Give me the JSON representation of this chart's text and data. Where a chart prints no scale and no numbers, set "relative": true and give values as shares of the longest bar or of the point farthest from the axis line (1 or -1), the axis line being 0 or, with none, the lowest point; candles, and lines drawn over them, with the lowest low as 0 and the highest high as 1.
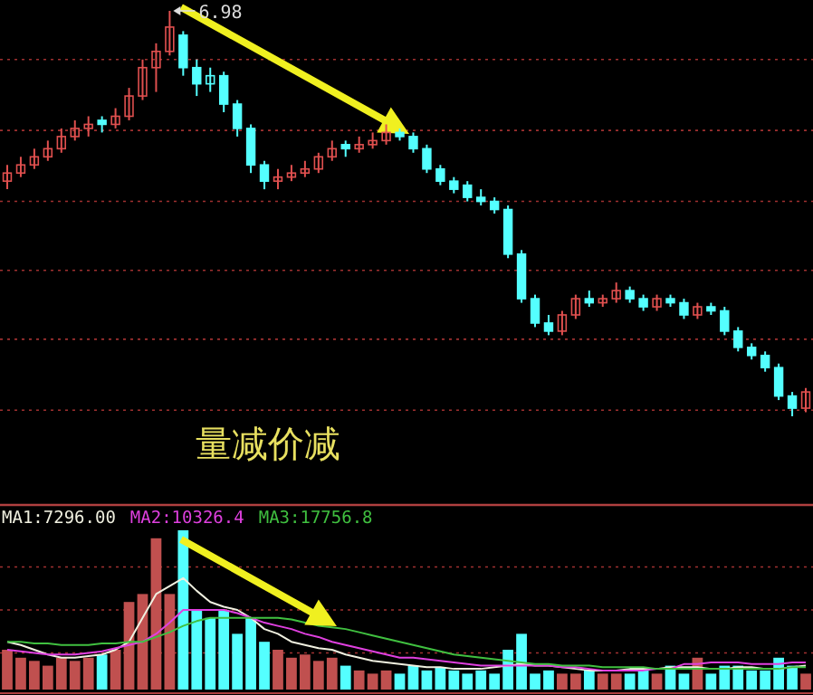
{
  "chart_data": [
    {
      "type": "candlestick",
      "relative": true,
      "ref_lines": [
        {
          "axis": "y",
          "value": 0.88,
          "color": "#a03030",
          "line_style": "dotted"
        },
        {
          "axis": "y",
          "value": 0.705,
          "color": "#a03030",
          "line_style": "dotted"
        },
        {
          "axis": "y",
          "value": 0.53,
          "color": "#a03030",
          "line_style": "dotted"
        },
        {
          "axis": "y",
          "value": 0.36,
          "color": "#a03030",
          "line_style": "dotted"
        },
        {
          "axis": "y",
          "value": 0.19,
          "color": "#a03030",
          "line_style": "dotted"
        },
        {
          "axis": "y",
          "value": 0.015,
          "color": "#a03030",
          "line_style": "dotted"
        }
      ],
      "annotations": [
        "6.98",
        "量减价减"
      ],
      "colors": [
        "#e0504f",
        "#e0504f",
        "#e0504f",
        "#e0504f",
        "#e0504f",
        "#e0504f",
        "#e0504f",
        "#54ffff",
        "#e0504f",
        "#e0504f",
        "#e0504f",
        "#e0504f",
        "#e0504f",
        "#54ffff",
        "#54ffff",
        "#54ffff",
        "#54ffff",
        "#54ffff",
        "#54ffff",
        "#54ffff",
        "#e0504f",
        "#e0504f",
        "#e0504f",
        "#e0504f",
        "#e0504f",
        "#54ffff",
        "#e0504f",
        "#e0504f",
        "#e0504f",
        "#54ffff",
        "#54ffff",
        "#54ffff",
        "#54ffff",
        "#54ffff",
        "#54ffff",
        "#54ffff",
        "#54ffff",
        "#54ffff",
        "#54ffff",
        "#54ffff",
        "#54ffff",
        "#e0504f",
        "#e0504f",
        "#54ffff",
        "#e0504f",
        "#e0504f",
        "#54ffff",
        "#54ffff",
        "#e0504f",
        "#54ffff",
        "#54ffff",
        "#e0504f",
        "#54ffff",
        "#54ffff",
        "#54ffff",
        "#54ffff",
        "#54ffff",
        "#54ffff",
        "#54ffff",
        "#e0504f"
      ],
      "categories": [
        null,
        null,
        null,
        null,
        null,
        null,
        null,
        null,
        null,
        null,
        null,
        null,
        null,
        null,
        null,
        null,
        null,
        null,
        null,
        null,
        null,
        null,
        null,
        null,
        null,
        null,
        null,
        null,
        null,
        null,
        null,
        null,
        null,
        null,
        null,
        null,
        null,
        null,
        null,
        null,
        null,
        null,
        null,
        null,
        null,
        null,
        null,
        null,
        null,
        null,
        null,
        null,
        null,
        null,
        null,
        null,
        null,
        null,
        null,
        null
      ],
      "ohlc": [
        [
          0.58,
          0.62,
          0.56,
          0.6
        ],
        [
          0.6,
          0.64,
          0.59,
          0.62
        ],
        [
          0.62,
          0.66,
          0.61,
          0.64
        ],
        [
          0.64,
          0.68,
          0.63,
          0.66
        ],
        [
          0.66,
          0.71,
          0.65,
          0.69
        ],
        [
          0.69,
          0.73,
          0.68,
          0.71
        ],
        [
          0.71,
          0.74,
          0.69,
          0.72
        ],
        [
          0.73,
          0.74,
          0.7,
          0.72
        ],
        [
          0.72,
          0.76,
          0.71,
          0.74
        ],
        [
          0.74,
          0.81,
          0.73,
          0.79
        ],
        [
          0.79,
          0.88,
          0.78,
          0.86
        ],
        [
          0.86,
          0.92,
          0.8,
          0.9
        ],
        [
          0.9,
          1,
          0.89,
          0.96
        ],
        [
          0.94,
          0.95,
          0.84,
          0.86
        ],
        [
          0.86,
          0.88,
          0.79,
          0.82
        ],
        [
          0.82,
          0.86,
          0.8,
          0.84
        ],
        [
          0.84,
          0.85,
          0.75,
          0.77
        ],
        [
          0.77,
          0.78,
          0.69,
          0.71
        ],
        [
          0.71,
          0.72,
          0.6,
          0.62
        ],
        [
          0.62,
          0.63,
          0.56,
          0.58
        ],
        [
          0.58,
          0.61,
          0.56,
          0.59
        ],
        [
          0.59,
          0.62,
          0.58,
          0.6
        ],
        [
          0.6,
          0.63,
          0.59,
          0.61
        ],
        [
          0.61,
          0.65,
          0.6,
          0.64
        ],
        [
          0.64,
          0.68,
          0.63,
          0.66
        ],
        [
          0.67,
          0.68,
          0.64,
          0.66
        ],
        [
          0.66,
          0.69,
          0.65,
          0.67
        ],
        [
          0.67,
          0.7,
          0.66,
          0.68
        ],
        [
          0.68,
          0.72,
          0.67,
          0.7
        ],
        [
          0.7,
          0.71,
          0.68,
          0.69
        ],
        [
          0.69,
          0.7,
          0.65,
          0.66
        ],
        [
          0.66,
          0.67,
          0.6,
          0.61
        ],
        [
          0.61,
          0.62,
          0.57,
          0.58
        ],
        [
          0.58,
          0.59,
          0.55,
          0.56
        ],
        [
          0.57,
          0.58,
          0.53,
          0.54
        ],
        [
          0.54,
          0.56,
          0.52,
          0.53
        ],
        [
          0.53,
          0.54,
          0.5,
          0.51
        ],
        [
          0.51,
          0.52,
          0.39,
          0.4
        ],
        [
          0.4,
          0.41,
          0.28,
          0.29
        ],
        [
          0.29,
          0.3,
          0.22,
          0.23
        ],
        [
          0.23,
          0.25,
          0.2,
          0.21
        ],
        [
          0.21,
          0.26,
          0.2,
          0.25
        ],
        [
          0.25,
          0.3,
          0.24,
          0.29
        ],
        [
          0.29,
          0.31,
          0.27,
          0.28
        ],
        [
          0.28,
          0.3,
          0.27,
          0.29
        ],
        [
          0.29,
          0.33,
          0.28,
          0.31
        ],
        [
          0.31,
          0.32,
          0.28,
          0.29
        ],
        [
          0.29,
          0.3,
          0.26,
          0.27
        ],
        [
          0.27,
          0.3,
          0.26,
          0.29
        ],
        [
          0.29,
          0.3,
          0.27,
          0.28
        ],
        [
          0.28,
          0.29,
          0.24,
          0.25
        ],
        [
          0.25,
          0.28,
          0.24,
          0.27
        ],
        [
          0.27,
          0.28,
          0.25,
          0.26
        ],
        [
          0.26,
          0.27,
          0.2,
          0.21
        ],
        [
          0.21,
          0.22,
          0.16,
          0.17
        ],
        [
          0.17,
          0.18,
          0.14,
          0.15
        ],
        [
          0.15,
          0.16,
          0.11,
          0.12
        ],
        [
          0.12,
          0.13,
          0.04,
          0.05
        ],
        [
          0.05,
          0.06,
          0,
          0.02
        ],
        [
          0.02,
          0.07,
          0.01,
          0.06
        ]
      ]
    },
    {
      "type": "bar",
      "relative": true,
      "legend": "top left",
      "ref_lines": [
        {
          "axis": "y",
          "value": 0.77,
          "color": "#a03030",
          "line_style": "dotted"
        },
        {
          "axis": "y",
          "value": 0.5,
          "color": "#a03030",
          "line_style": "dotted"
        },
        {
          "axis": "y",
          "value": 0.23,
          "color": "#a03030",
          "line_style": "dotted"
        }
      ],
      "categories": [
        null,
        null,
        null,
        null,
        null,
        null,
        null,
        null,
        null,
        null,
        null,
        null,
        null,
        null,
        null,
        null,
        null,
        null,
        null,
        null,
        null,
        null,
        null,
        null,
        null,
        null,
        null,
        null,
        null,
        null,
        null,
        null,
        null,
        null,
        null,
        null,
        null,
        null,
        null,
        null,
        null,
        null,
        null,
        null,
        null,
        null,
        null,
        null,
        null,
        null,
        null,
        null,
        null,
        null,
        null,
        null,
        null,
        null,
        null,
        null
      ],
      "values": [
        0.25,
        0.2,
        0.18,
        0.15,
        0.2,
        0.18,
        0.2,
        0.22,
        0.25,
        0.55,
        0.6,
        0.95,
        0.6,
        1,
        0.5,
        0.45,
        0.5,
        0.35,
        0.45,
        0.3,
        0.25,
        0.2,
        0.22,
        0.18,
        0.2,
        0.15,
        0.12,
        0.1,
        0.12,
        0.1,
        0.15,
        0.12,
        0.14,
        0.12,
        0.1,
        0.12,
        0.1,
        0.25,
        0.35,
        0.1,
        0.12,
        0.1,
        0.1,
        0.12,
        0.1,
        0.1,
        0.1,
        0.12,
        0.1,
        0.15,
        0.1,
        0.2,
        0.1,
        0.15,
        0.15,
        0.12,
        0.12,
        0.2,
        0.15,
        0.1
      ],
      "colors": [
        "#c0504f",
        "#c0504f",
        "#c0504f",
        "#c0504f",
        "#c0504f",
        "#c0504f",
        "#c0504f",
        "#54ffff",
        "#c0504f",
        "#c0504f",
        "#c0504f",
        "#c0504f",
        "#c0504f",
        "#54ffff",
        "#54ffff",
        "#54ffff",
        "#54ffff",
        "#54ffff",
        "#54ffff",
        "#54ffff",
        "#c0504f",
        "#c0504f",
        "#c0504f",
        "#c0504f",
        "#c0504f",
        "#54ffff",
        "#c0504f",
        "#c0504f",
        "#c0504f",
        "#54ffff",
        "#54ffff",
        "#54ffff",
        "#54ffff",
        "#54ffff",
        "#54ffff",
        "#54ffff",
        "#54ffff",
        "#54ffff",
        "#54ffff",
        "#54ffff",
        "#54ffff",
        "#c0504f",
        "#c0504f",
        "#54ffff",
        "#c0504f",
        "#c0504f",
        "#54ffff",
        "#54ffff",
        "#c0504f",
        "#54ffff",
        "#54ffff",
        "#c0504f",
        "#54ffff",
        "#54ffff",
        "#54ffff",
        "#54ffff",
        "#54ffff",
        "#54ffff",
        "#54ffff",
        "#c0504f"
      ],
      "series": [
        {
          "name": "MA1:7296.00",
          "type": "line",
          "color": "#f0f0e0",
          "values": [
            0.3,
            0.28,
            0.25,
            0.22,
            0.2,
            0.2,
            0.21,
            0.22,
            0.25,
            0.3,
            0.45,
            0.6,
            0.65,
            0.7,
            0.62,
            0.55,
            0.52,
            0.5,
            0.45,
            0.38,
            0.35,
            0.3,
            0.28,
            0.26,
            0.25,
            0.22,
            0.2,
            0.18,
            0.17,
            0.16,
            0.15,
            0.14,
            0.14,
            0.13,
            0.13,
            0.13,
            0.14,
            0.15,
            0.16,
            0.15,
            0.15,
            0.14,
            0.13,
            0.12,
            0.12,
            0.12,
            0.13,
            0.13,
            0.13,
            0.14,
            0.14,
            0.14,
            0.13,
            0.13,
            0.14,
            0.14,
            0.13,
            0.13,
            0.14,
            0.15
          ]
        },
        {
          "name": "MA2:10326.4",
          "type": "line",
          "color": "#e040e0",
          "values": [
            0.25,
            0.24,
            0.23,
            0.22,
            0.22,
            0.22,
            0.23,
            0.24,
            0.26,
            0.28,
            0.3,
            0.35,
            0.42,
            0.5,
            0.5,
            0.5,
            0.5,
            0.48,
            0.45,
            0.42,
            0.4,
            0.38,
            0.35,
            0.33,
            0.3,
            0.28,
            0.26,
            0.24,
            0.22,
            0.2,
            0.2,
            0.19,
            0.18,
            0.17,
            0.16,
            0.15,
            0.15,
            0.15,
            0.15,
            0.15,
            0.15,
            0.14,
            0.14,
            0.13,
            0.12,
            0.12,
            0.12,
            0.12,
            0.13,
            0.13,
            0.16,
            0.16,
            0.17,
            0.17,
            0.17,
            0.16,
            0.16,
            0.16,
            0.17,
            0.17
          ]
        },
        {
          "name": "MA3:17756.8",
          "type": "line",
          "color": "#40c040",
          "values": [
            0.3,
            0.3,
            0.29,
            0.29,
            0.28,
            0.28,
            0.28,
            0.29,
            0.29,
            0.3,
            0.3,
            0.33,
            0.36,
            0.4,
            0.43,
            0.45,
            0.45,
            0.45,
            0.45,
            0.45,
            0.45,
            0.44,
            0.42,
            0.4,
            0.39,
            0.38,
            0.36,
            0.34,
            0.32,
            0.3,
            0.28,
            0.26,
            0.24,
            0.22,
            0.21,
            0.2,
            0.19,
            0.18,
            0.17,
            0.16,
            0.16,
            0.15,
            0.15,
            0.15,
            0.14,
            0.14,
            0.14,
            0.14,
            0.13,
            0.13,
            0.13,
            0.13,
            0.13,
            0.13,
            0.13,
            0.13,
            0.13,
            0.13,
            0.14,
            0.14
          ]
        }
      ]
    }
  ]
}
